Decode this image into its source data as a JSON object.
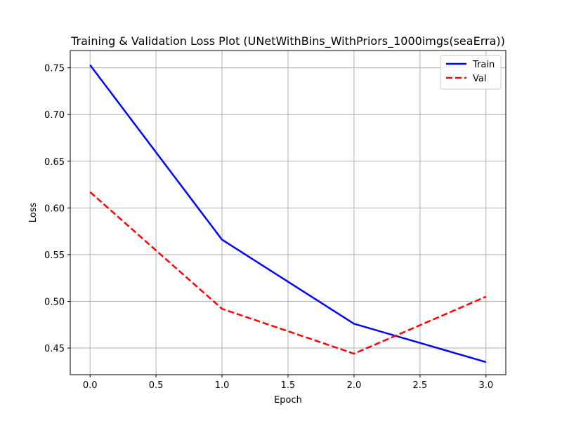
{
  "chart_data": {
    "type": "line",
    "title": "Training & Validation Loss Plot (UNetWithBins_WithPriors_1000imgs(seaErra))",
    "xlabel": "Epoch",
    "ylabel": "Loss",
    "x": [
      0,
      1,
      2,
      3
    ],
    "xlim": [
      -0.15,
      3.15
    ],
    "ylim": [
      0.4215,
      0.7685
    ],
    "xticks": [
      "0.0",
      "0.5",
      "1.0",
      "1.5",
      "2.0",
      "2.5",
      "3.0"
    ],
    "yticks": [
      "0.45",
      "0.50",
      "0.55",
      "0.60",
      "0.65",
      "0.70",
      "0.75"
    ],
    "grid": true,
    "legend_position": "top-right",
    "series": [
      {
        "name": "Train",
        "values": [
          0.753,
          0.566,
          0.476,
          0.435
        ],
        "color": "#0000ff",
        "style": "solid"
      },
      {
        "name": "Val",
        "values": [
          0.617,
          0.492,
          0.444,
          0.505
        ],
        "color": "#ff0000",
        "style": "dashed"
      }
    ]
  }
}
